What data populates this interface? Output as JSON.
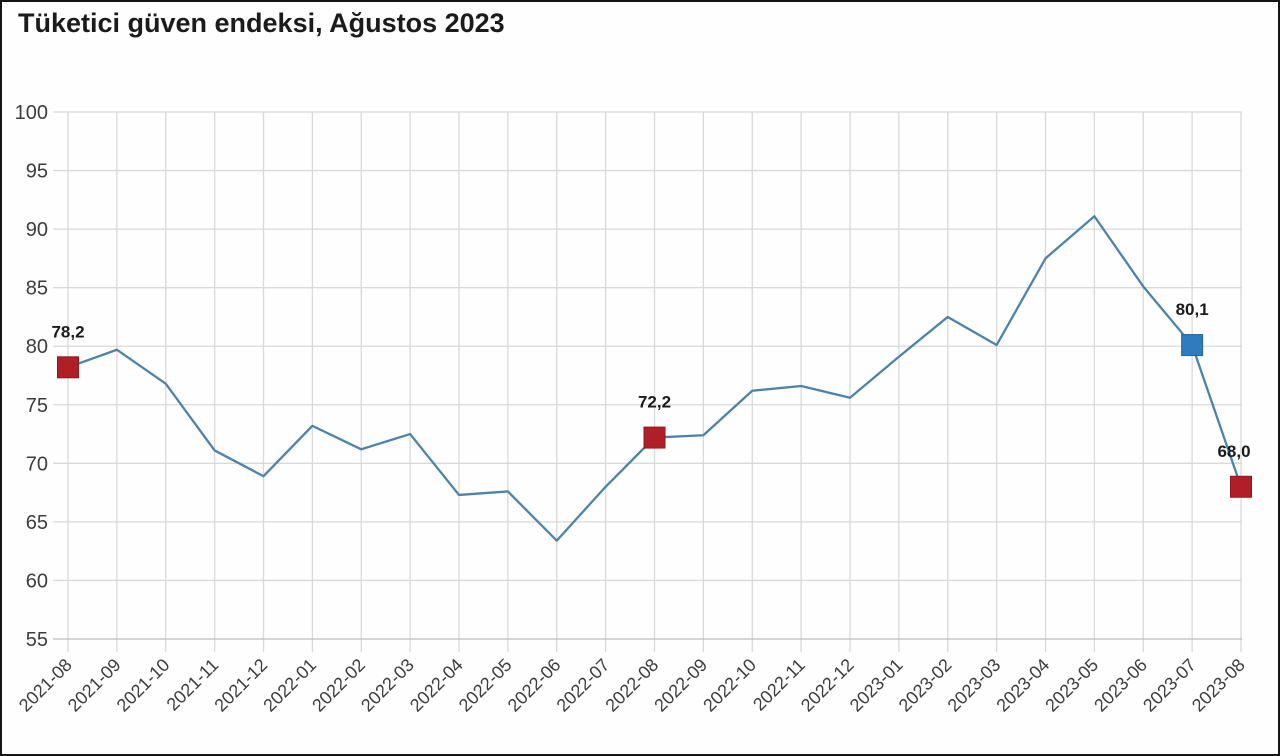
{
  "chart_data": {
    "type": "line",
    "title": "Tüketici güven endeksi, Ağustos 2023",
    "xlabel": "",
    "ylabel": "",
    "categories": [
      "2021-08",
      "2021-09",
      "2021-10",
      "2021-11",
      "2021-12",
      "2022-01",
      "2022-02",
      "2022-03",
      "2022-04",
      "2022-05",
      "2022-06",
      "2022-07",
      "2022-08",
      "2022-09",
      "2022-10",
      "2022-11",
      "2022-12",
      "2023-01",
      "2023-02",
      "2023-03",
      "2023-04",
      "2023-05",
      "2023-06",
      "2023-07",
      "2023-08"
    ],
    "values": [
      78.2,
      79.7,
      76.8,
      71.1,
      68.9,
      73.2,
      71.2,
      72.5,
      67.3,
      67.6,
      63.4,
      68.0,
      72.2,
      72.4,
      76.2,
      76.6,
      75.6,
      79.1,
      82.5,
      80.1,
      87.5,
      91.1,
      85.1,
      80.1,
      68.0
    ],
    "ylim": [
      55,
      100
    ],
    "yticks": [
      55,
      60,
      65,
      70,
      75,
      80,
      85,
      90,
      95,
      100
    ],
    "ytick_labels": [
      "55",
      "60",
      "65",
      "70",
      "75",
      "80",
      "85",
      "90",
      "95",
      "100"
    ],
    "grid": true,
    "legend": "none",
    "decimal_style": "comma",
    "highlights": [
      {
        "category": "2021-08",
        "value": 78.2,
        "label": "78,2",
        "color_key": "highlight_red"
      },
      {
        "category": "2022-08",
        "value": 72.2,
        "label": "72,2",
        "color_key": "highlight_red"
      },
      {
        "category": "2023-07",
        "value": 80.1,
        "label": "80,1",
        "color_key": "highlight_blue"
      },
      {
        "category": "2023-08",
        "value": 68.0,
        "label": "68,0",
        "color_key": "highlight_red"
      }
    ],
    "colors": {
      "line": "#4d83aa",
      "grid": "#d9d9d9",
      "axis_bottom": "#bdbdbd",
      "tick_label": "#3d3d3d",
      "data_label": "#1a1a1a",
      "highlight_red": "#b01f27",
      "highlight_red_border": "#8e1820",
      "highlight_blue": "#2e7bbd",
      "highlight_blue_border": "#22659e",
      "background": "#fefefe",
      "frame_border": "#151515"
    }
  }
}
